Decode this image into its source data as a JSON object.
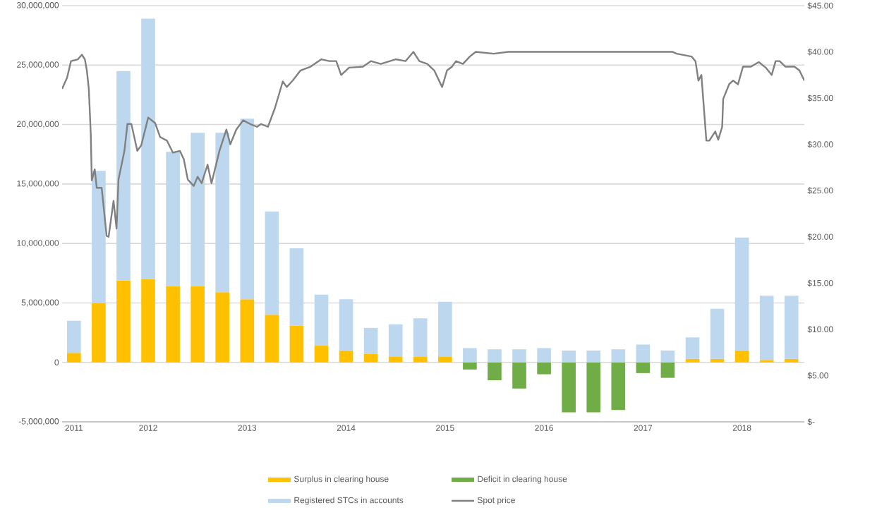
{
  "chart_data": {
    "type": "bar",
    "x": [
      2011.25,
      2011.5,
      2011.75,
      2012.0,
      2012.25,
      2012.5,
      2012.75,
      2013.0,
      2013.25,
      2013.5,
      2013.75,
      2014.0,
      2014.25,
      2014.5,
      2014.75,
      2015.0,
      2015.25,
      2015.5,
      2015.75,
      2016.0,
      2016.25,
      2016.5,
      2016.75,
      2017.0,
      2017.25,
      2017.5,
      2017.75,
      2018.0,
      2018.25,
      2018.5
    ],
    "series": [
      {
        "name": "Surplus in clearing house",
        "color": "#ffc000",
        "values": [
          800000,
          5000000,
          6900000,
          7000000,
          6400000,
          6400000,
          5900000,
          5300000,
          4000000,
          3100000,
          1400000,
          1000000,
          700000,
          500000,
          500000,
          500000,
          null,
          null,
          null,
          null,
          null,
          null,
          null,
          null,
          null,
          300000,
          300000,
          1000000,
          200000,
          300000
        ]
      },
      {
        "name": "Deficit in clearing house",
        "color": "#70ad47",
        "values": [
          null,
          null,
          null,
          null,
          null,
          null,
          null,
          null,
          null,
          null,
          null,
          null,
          null,
          null,
          null,
          null,
          -600000,
          -1500000,
          -2200000,
          -1000000,
          -4200000,
          -4200000,
          -4000000,
          -900000,
          -1300000,
          null,
          null,
          null,
          null,
          null
        ]
      },
      {
        "name": "Registered STCs in accounts",
        "color": "#bdd7ee",
        "values": [
          2700000,
          11100000,
          17600000,
          21900000,
          11300000,
          12900000,
          13400000,
          15200000,
          8700000,
          6500000,
          4300000,
          4300000,
          2200000,
          2700000,
          3200000,
          4600000,
          1200000,
          1100000,
          1100000,
          1200000,
          1000000,
          1000000,
          1100000,
          1500000,
          1000000,
          1800000,
          4200000,
          9500000,
          5400000,
          5300000
        ]
      },
      {
        "name": "Spot price",
        "type": "line",
        "axis": "y2",
        "color": "#808080",
        "x": [
          2011.13,
          2011.18,
          2011.22,
          2011.29,
          2011.33,
          2011.36,
          2011.38,
          2011.4,
          2011.42,
          2011.43,
          2011.46,
          2011.48,
          2011.53,
          2011.58,
          2011.6,
          2011.65,
          2011.68,
          2011.7,
          2011.75,
          2011.76,
          2011.79,
          2011.83,
          2011.89,
          2011.93,
          2012.0,
          2012.07,
          2012.12,
          2012.19,
          2012.25,
          2012.32,
          2012.36,
          2012.4,
          2012.46,
          2012.5,
          2012.54,
          2012.6,
          2012.64,
          2012.72,
          2012.79,
          2012.83,
          2012.89,
          2012.96,
          2013.03,
          2013.1,
          2013.14,
          2013.21,
          2013.28,
          2013.36,
          2013.4,
          2013.46,
          2013.54,
          2013.64,
          2013.75,
          2013.83,
          2013.9,
          2013.95,
          2014.03,
          2014.17,
          2014.25,
          2014.35,
          2014.5,
          2014.6,
          2014.68,
          2014.74,
          2014.82,
          2014.89,
          2014.97,
          2015.02,
          2015.07,
          2015.11,
          2015.18,
          2015.25,
          2015.31,
          2015.49,
          2015.64,
          2017.3,
          2017.34,
          2017.49,
          2017.53,
          2017.56,
          2017.59,
          2017.64,
          2017.67,
          2017.73,
          2017.76,
          2017.8,
          2017.81,
          2017.87,
          2017.91,
          2017.96,
          2018.01,
          2018.09,
          2018.17,
          2018.24,
          2018.3,
          2018.34,
          2018.38,
          2018.44,
          2018.53,
          2018.58,
          2018.63
        ],
        "values": [
          36.0,
          37.2,
          39.0,
          39.2,
          39.7,
          39.2,
          38.0,
          36.0,
          31.1,
          26.1,
          27.3,
          25.3,
          25.3,
          20.1,
          20.0,
          23.9,
          20.9,
          26.2,
          28.8,
          29.3,
          32.2,
          32.2,
          29.3,
          29.9,
          32.9,
          32.3,
          30.8,
          30.4,
          29.1,
          29.3,
          28.4,
          26.2,
          25.5,
          26.5,
          25.8,
          27.8,
          25.8,
          29.3,
          31.6,
          30.0,
          31.6,
          32.6,
          32.2,
          31.9,
          32.2,
          31.9,
          33.9,
          36.8,
          36.2,
          36.9,
          38.0,
          38.4,
          39.2,
          39.0,
          39.0,
          37.5,
          38.3,
          38.4,
          39.0,
          38.7,
          39.2,
          39.0,
          40.0,
          39.0,
          38.7,
          38.0,
          36.2,
          38.0,
          38.4,
          39.0,
          38.7,
          39.5,
          40.0,
          39.8,
          40.0,
          40.0,
          39.8,
          39.5,
          39.0,
          36.9,
          37.5,
          30.4,
          30.4,
          31.4,
          30.5,
          31.9,
          34.9,
          36.5,
          36.9,
          36.5,
          38.4,
          38.4,
          38.9,
          38.3,
          37.5,
          39.0,
          39.0,
          38.4,
          38.4,
          38.0,
          36.9
        ]
      }
    ],
    "xlim": [
      2011.13,
      2018.63
    ],
    "xticks": [
      {
        "value": 2011.25,
        "label": "2011"
      },
      2012,
      2013,
      2014,
      2015,
      2016,
      2017,
      2018
    ],
    "ylim": [
      -5000000,
      30000000
    ],
    "yticks": [
      {
        "value": -5000000,
        "label": "-5,000,000"
      },
      0,
      {
        "value": 5000000,
        "label": "5,000,000"
      },
      {
        "value": 10000000,
        "label": "10,000,000"
      },
      {
        "value": 15000000,
        "label": "15,000,000"
      },
      {
        "value": 20000000,
        "label": "20,000,000"
      },
      {
        "value": 25000000,
        "label": "25,000,000"
      },
      {
        "value": 30000000,
        "label": "30,000,000"
      }
    ],
    "y2lim": [
      0,
      45
    ],
    "y2ticks": [
      {
        "value": 0,
        "label": "$-"
      },
      {
        "value": 5,
        "label": "$5.00"
      },
      {
        "value": 10,
        "label": "$10.00"
      },
      {
        "value": 15,
        "label": "$15.00"
      },
      {
        "value": 20,
        "label": "$20.00"
      },
      {
        "value": 25,
        "label": "$25.00"
      },
      {
        "value": 30,
        "label": "$30.00"
      },
      {
        "value": 35,
        "label": "$35.00"
      },
      {
        "value": 40,
        "label": "$40.00"
      },
      {
        "value": 45,
        "label": "$45.00"
      }
    ],
    "stacked": true,
    "grid": "y",
    "legend": "bottom"
  }
}
